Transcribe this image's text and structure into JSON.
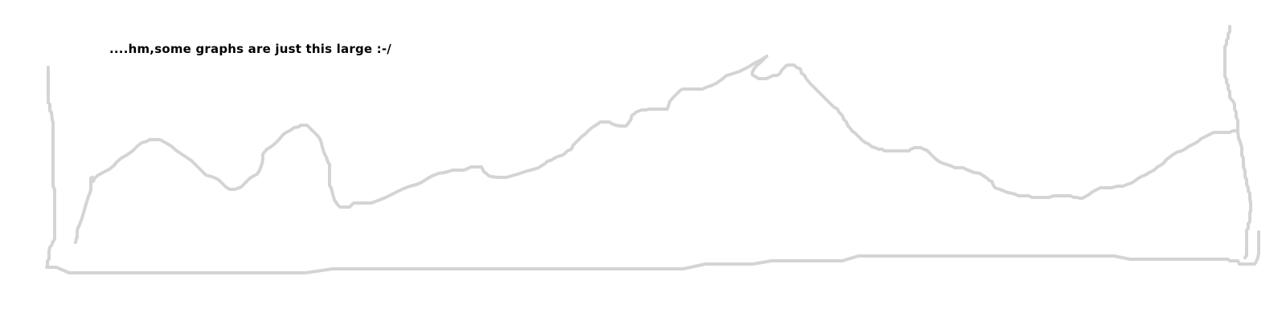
{
  "caption": "....hm,some graphs are just this large :-/",
  "colors": {
    "background": "#ffffff",
    "text": "#000000",
    "stroke": "#d4d4d4"
  }
}
